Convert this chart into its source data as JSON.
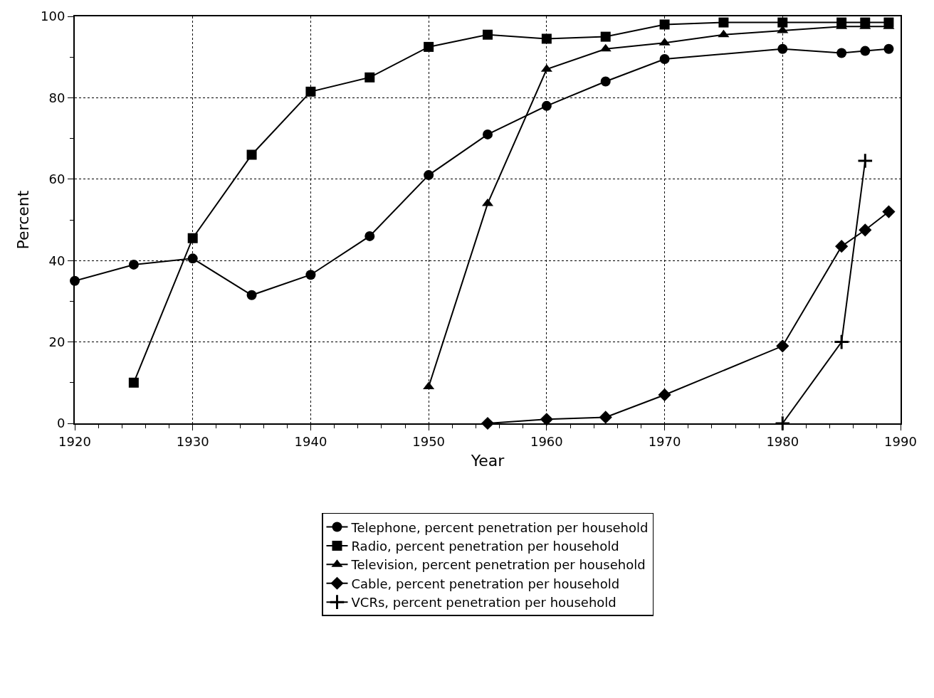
{
  "chart_data": {
    "type": "line",
    "xlabel": "Year",
    "ylabel": "Percent",
    "xlim": [
      1920,
      1990
    ],
    "xticks": [
      1920,
      1930,
      1940,
      1950,
      1960,
      1970,
      1980,
      1990
    ],
    "ylim": [
      0,
      100
    ],
    "yticks": [
      0,
      20,
      40,
      60,
      80,
      100
    ],
    "grid": true,
    "legend": "bottom",
    "line_style": "solid",
    "series": [
      {
        "name": "Telephone, percent penetration per household",
        "color": "#000000",
        "marker": "circle",
        "x": [
          1920,
          1925,
          1930,
          1935,
          1940,
          1945,
          1950,
          1955,
          1960,
          1965,
          1970,
          1980,
          1985,
          1987,
          1989
        ],
        "values": [
          35,
          39,
          40.5,
          31.5,
          36.5,
          46,
          61,
          71,
          78,
          84,
          89.5,
          92,
          91,
          91.5,
          92
        ]
      },
      {
        "name": "Radio, percent penetration per household",
        "color": "#000000",
        "marker": "square",
        "x": [
          1925,
          1930,
          1935,
          1940,
          1945,
          1950,
          1955,
          1960,
          1965,
          1970,
          1975,
          1980,
          1985,
          1987,
          1989
        ],
        "values": [
          10,
          45.5,
          66,
          81.5,
          85,
          92.5,
          95.5,
          94.5,
          95,
          98,
          98.5,
          98.5,
          98.5,
          98.5,
          98.5
        ]
      },
      {
        "name": "Television, percent penetration per household",
        "color": "#000000",
        "marker": "triangle",
        "x": [
          1950,
          1955,
          1960,
          1965,
          1970,
          1975,
          1980,
          1985,
          1987,
          1989
        ],
        "values": [
          9,
          54,
          87,
          92,
          93.5,
          95.5,
          96.5,
          97.5,
          97.5,
          97.5
        ]
      },
      {
        "name": "Cable, percent penetration per household",
        "color": "#000000",
        "marker": "diamond",
        "x": [
          1955,
          1960,
          1965,
          1970,
          1980,
          1985,
          1987,
          1989
        ],
        "values": [
          0,
          1,
          1.5,
          7,
          19,
          43.5,
          47.5,
          52
        ]
      },
      {
        "name": "VCRs, percent penetration per household",
        "color": "#000000",
        "marker": "cross",
        "x": [
          1980,
          1985,
          1987
        ],
        "values": [
          0,
          20,
          64.5
        ]
      }
    ]
  }
}
